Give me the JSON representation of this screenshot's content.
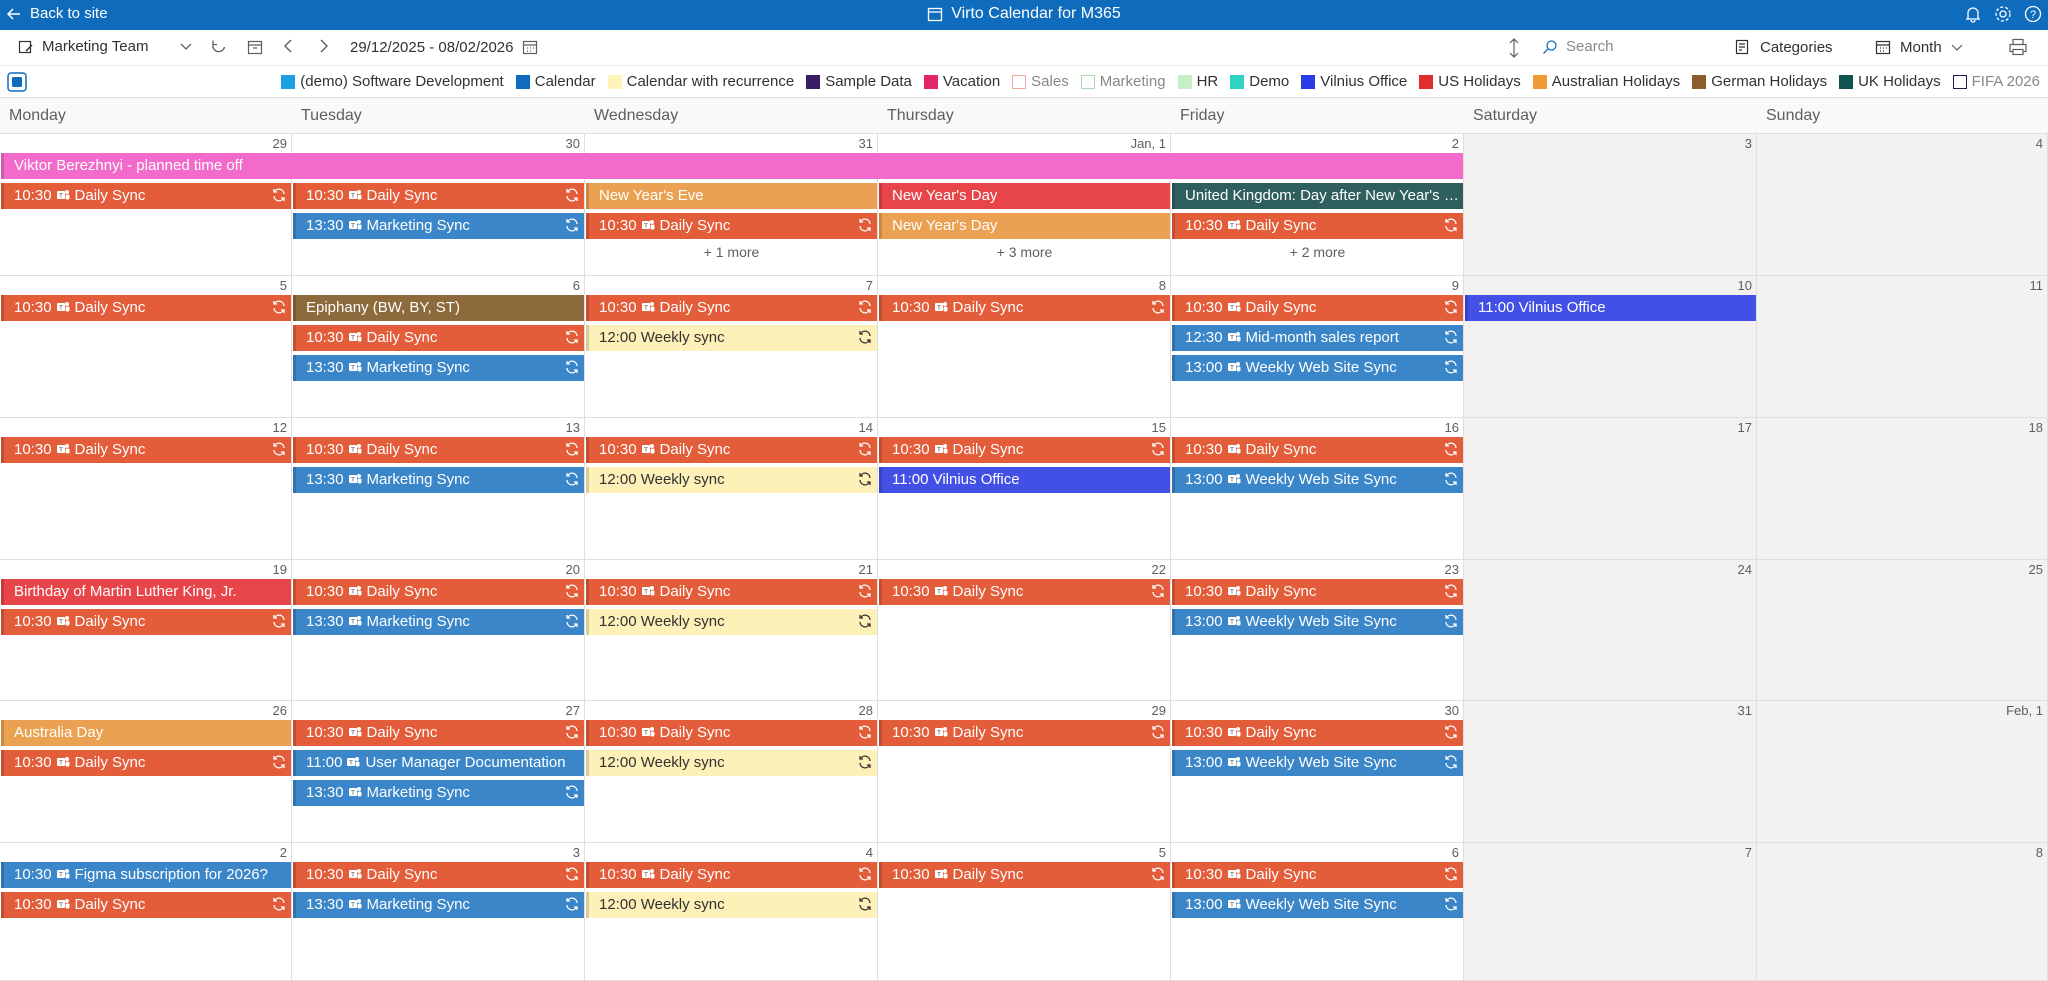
{
  "topbar": {
    "back_label": "Back to site",
    "title": "Virto Calendar for M365"
  },
  "toolbar": {
    "calendar_name": "Marketing Team",
    "date_range": "29/12/2025 - 08/02/2026",
    "search_placeholder": "Search",
    "categories_label": "Categories",
    "view_label": "Month"
  },
  "legend": [
    {
      "label": "(demo) Software Development",
      "color": "#1ba1e2",
      "filled": true
    },
    {
      "label": "Calendar",
      "color": "#0f6cbd",
      "filled": true
    },
    {
      "label": "Calendar with recurrence",
      "color": "#fff4b8",
      "filled": true
    },
    {
      "label": "Sample Data",
      "color": "#3b1d63",
      "filled": true
    },
    {
      "label": "Vacation",
      "color": "#e3256b",
      "filled": true
    },
    {
      "label": "Sales",
      "color": "#f4a7a0",
      "filled": false
    },
    {
      "label": "Marketing",
      "color": "#a8d8a8",
      "filled": false
    },
    {
      "label": "HR",
      "color": "#c6efc6",
      "filled": true
    },
    {
      "label": "Demo",
      "color": "#2ed3c1",
      "filled": true
    },
    {
      "label": "Vilnius Office",
      "color": "#2a3ce8",
      "filled": true
    },
    {
      "label": "US Holidays",
      "color": "#e02d2d",
      "filled": true
    },
    {
      "label": "Australian Holidays",
      "color": "#ef9d33",
      "filled": true
    },
    {
      "label": "German Holidays",
      "color": "#8b5e2b",
      "filled": true
    },
    {
      "label": "UK Holidays",
      "color": "#0e5450",
      "filled": true
    },
    {
      "label": "FIFA 2026",
      "color": "#1b1b4b",
      "filled": false
    }
  ],
  "weekdays": [
    "Monday",
    "Tuesday",
    "Wednesday",
    "Thursday",
    "Friday",
    "Saturday",
    "Sunday"
  ],
  "weeks": [
    [
      "29",
      "30",
      "31",
      "Jan, 1",
      "2",
      "3",
      "4"
    ],
    [
      "5",
      "6",
      "7",
      "8",
      "9",
      "10",
      "11"
    ],
    [
      "12",
      "13",
      "14",
      "15",
      "16",
      "17",
      "18"
    ],
    [
      "19",
      "20",
      "21",
      "22",
      "23",
      "24",
      "25"
    ],
    [
      "26",
      "27",
      "28",
      "29",
      "30",
      "31",
      "Feb, 1"
    ],
    [
      "2",
      "3",
      "4",
      "5",
      "6",
      "7",
      "8"
    ]
  ],
  "colors": {
    "daily": "#e35d3a",
    "marketing": "#3a86c8",
    "weekly": "#fdf0b8",
    "vacation": "#f26bcb",
    "au": "#eba152",
    "us": "#e8454a",
    "uk": "#2e5f5c",
    "de": "#8c6a3c",
    "vilnius": "#4350e6",
    "calendar": "#3a86c8"
  },
  "events": [
    {
      "w": 0,
      "d": 0,
      "span": 5,
      "row": 0,
      "time": "",
      "title": "Viktor Berezhnyi - planned time off",
      "c": "vacation",
      "teams": false,
      "rec": false
    },
    {
      "w": 0,
      "d": 0,
      "row": 1,
      "time": "10:30",
      "title": "Daily Sync",
      "c": "daily",
      "teams": true,
      "rec": true
    },
    {
      "w": 0,
      "d": 1,
      "row": 1,
      "time": "10:30",
      "title": "Daily Sync",
      "c": "daily",
      "teams": true,
      "rec": true
    },
    {
      "w": 0,
      "d": 1,
      "row": 2,
      "time": "13:30",
      "title": "Marketing Sync",
      "c": "marketing",
      "teams": true,
      "rec": true
    },
    {
      "w": 0,
      "d": 2,
      "row": 1,
      "time": "",
      "title": "New Year's Eve",
      "c": "au",
      "teams": false,
      "rec": false
    },
    {
      "w": 0,
      "d": 2,
      "row": 2,
      "time": "10:30",
      "title": "Daily Sync",
      "c": "daily",
      "teams": true,
      "rec": true
    },
    {
      "w": 0,
      "d": 3,
      "row": 1,
      "time": "",
      "title": "New Year's Day",
      "c": "us",
      "teams": false,
      "rec": false
    },
    {
      "w": 0,
      "d": 3,
      "row": 2,
      "time": "",
      "title": "New Year's Day",
      "c": "au",
      "teams": false,
      "rec": false
    },
    {
      "w": 0,
      "d": 4,
      "row": 1,
      "time": "",
      "title": "United Kingdom: Day after New Year's Day",
      "c": "uk",
      "teams": false,
      "rec": false
    },
    {
      "w": 0,
      "d": 4,
      "row": 2,
      "time": "10:30",
      "title": "Daily Sync",
      "c": "daily",
      "teams": true,
      "rec": true
    },
    {
      "w": 1,
      "d": 0,
      "row": 0,
      "time": "10:30",
      "title": "Daily Sync",
      "c": "daily",
      "teams": true,
      "rec": true
    },
    {
      "w": 1,
      "d": 1,
      "row": 0,
      "time": "",
      "title": "Epiphany (BW, BY, ST)",
      "c": "de",
      "teams": false,
      "rec": false
    },
    {
      "w": 1,
      "d": 1,
      "row": 1,
      "time": "10:30",
      "title": "Daily Sync",
      "c": "daily",
      "teams": true,
      "rec": true
    },
    {
      "w": 1,
      "d": 1,
      "row": 2,
      "time": "13:30",
      "title": "Marketing Sync",
      "c": "marketing",
      "teams": true,
      "rec": true
    },
    {
      "w": 1,
      "d": 2,
      "row": 0,
      "time": "10:30",
      "title": "Daily Sync",
      "c": "daily",
      "teams": true,
      "rec": true
    },
    {
      "w": 1,
      "d": 2,
      "row": 1,
      "time": "12:00",
      "title": "Weekly sync",
      "c": "weekly",
      "teams": false,
      "rec": true
    },
    {
      "w": 1,
      "d": 3,
      "row": 0,
      "time": "10:30",
      "title": "Daily Sync",
      "c": "daily",
      "teams": true,
      "rec": true
    },
    {
      "w": 1,
      "d": 4,
      "row": 0,
      "time": "10:30",
      "title": "Daily Sync",
      "c": "daily",
      "teams": true,
      "rec": true
    },
    {
      "w": 1,
      "d": 4,
      "row": 1,
      "time": "12:30",
      "title": "Mid-month sales report",
      "c": "marketing",
      "teams": true,
      "rec": true
    },
    {
      "w": 1,
      "d": 4,
      "row": 2,
      "time": "13:00",
      "title": "Weekly Web Site Sync",
      "c": "marketing",
      "teams": true,
      "rec": true
    },
    {
      "w": 1,
      "d": 5,
      "row": 0,
      "time": "11:00",
      "title": "Vilnius Office",
      "c": "vilnius",
      "teams": false,
      "rec": false
    },
    {
      "w": 2,
      "d": 0,
      "row": 0,
      "time": "10:30",
      "title": "Daily Sync",
      "c": "daily",
      "teams": true,
      "rec": true
    },
    {
      "w": 2,
      "d": 1,
      "row": 0,
      "time": "10:30",
      "title": "Daily Sync",
      "c": "daily",
      "teams": true,
      "rec": true
    },
    {
      "w": 2,
      "d": 1,
      "row": 1,
      "time": "13:30",
      "title": "Marketing Sync",
      "c": "marketing",
      "teams": true,
      "rec": true
    },
    {
      "w": 2,
      "d": 2,
      "row": 0,
      "time": "10:30",
      "title": "Daily Sync",
      "c": "daily",
      "teams": true,
      "rec": true
    },
    {
      "w": 2,
      "d": 2,
      "row": 1,
      "time": "12:00",
      "title": "Weekly sync",
      "c": "weekly",
      "teams": false,
      "rec": true
    },
    {
      "w": 2,
      "d": 3,
      "row": 0,
      "time": "10:30",
      "title": "Daily Sync",
      "c": "daily",
      "teams": true,
      "rec": true
    },
    {
      "w": 2,
      "d": 3,
      "row": 1,
      "time": "11:00",
      "title": "Vilnius Office",
      "c": "vilnius",
      "teams": false,
      "rec": false
    },
    {
      "w": 2,
      "d": 4,
      "row": 0,
      "time": "10:30",
      "title": "Daily Sync",
      "c": "daily",
      "teams": true,
      "rec": true
    },
    {
      "w": 2,
      "d": 4,
      "row": 1,
      "time": "13:00",
      "title": "Weekly Web Site Sync",
      "c": "marketing",
      "teams": true,
      "rec": true
    },
    {
      "w": 3,
      "d": 0,
      "row": 0,
      "time": "",
      "title": "Birthday of Martin Luther King, Jr.",
      "c": "us",
      "teams": false,
      "rec": false
    },
    {
      "w": 3,
      "d": 0,
      "row": 1,
      "time": "10:30",
      "title": "Daily Sync",
      "c": "daily",
      "teams": true,
      "rec": true
    },
    {
      "w": 3,
      "d": 1,
      "row": 0,
      "time": "10:30",
      "title": "Daily Sync",
      "c": "daily",
      "teams": true,
      "rec": true
    },
    {
      "w": 3,
      "d": 1,
      "row": 1,
      "time": "13:30",
      "title": "Marketing Sync",
      "c": "marketing",
      "teams": true,
      "rec": true
    },
    {
      "w": 3,
      "d": 2,
      "row": 0,
      "time": "10:30",
      "title": "Daily Sync",
      "c": "daily",
      "teams": true,
      "rec": true
    },
    {
      "w": 3,
      "d": 2,
      "row": 1,
      "time": "12:00",
      "title": "Weekly sync",
      "c": "weekly",
      "teams": false,
      "rec": true
    },
    {
      "w": 3,
      "d": 3,
      "row": 0,
      "time": "10:30",
      "title": "Daily Sync",
      "c": "daily",
      "teams": true,
      "rec": true
    },
    {
      "w": 3,
      "d": 4,
      "row": 0,
      "time": "10:30",
      "title": "Daily Sync",
      "c": "daily",
      "teams": true,
      "rec": true
    },
    {
      "w": 3,
      "d": 4,
      "row": 1,
      "time": "13:00",
      "title": "Weekly Web Site Sync",
      "c": "marketing",
      "teams": true,
      "rec": true
    },
    {
      "w": 4,
      "d": 0,
      "row": 0,
      "time": "",
      "title": "Australia Day",
      "c": "au",
      "teams": false,
      "rec": false
    },
    {
      "w": 4,
      "d": 0,
      "row": 1,
      "time": "10:30",
      "title": "Daily Sync",
      "c": "daily",
      "teams": true,
      "rec": true
    },
    {
      "w": 4,
      "d": 1,
      "row": 0,
      "time": "10:30",
      "title": "Daily Sync",
      "c": "daily",
      "teams": true,
      "rec": true
    },
    {
      "w": 4,
      "d": 1,
      "row": 1,
      "time": "11:00",
      "title": "User Manager Documentation",
      "c": "marketing",
      "teams": true,
      "rec": false
    },
    {
      "w": 4,
      "d": 1,
      "row": 2,
      "time": "13:30",
      "title": "Marketing Sync",
      "c": "marketing",
      "teams": true,
      "rec": true
    },
    {
      "w": 4,
      "d": 2,
      "row": 0,
      "time": "10:30",
      "title": "Daily Sync",
      "c": "daily",
      "teams": true,
      "rec": true
    },
    {
      "w": 4,
      "d": 2,
      "row": 1,
      "time": "12:00",
      "title": "Weekly sync",
      "c": "weekly",
      "teams": false,
      "rec": true
    },
    {
      "w": 4,
      "d": 3,
      "row": 0,
      "time": "10:30",
      "title": "Daily Sync",
      "c": "daily",
      "teams": true,
      "rec": true
    },
    {
      "w": 4,
      "d": 4,
      "row": 0,
      "time": "10:30",
      "title": "Daily Sync",
      "c": "daily",
      "teams": true,
      "rec": true
    },
    {
      "w": 4,
      "d": 4,
      "row": 1,
      "time": "13:00",
      "title": "Weekly Web Site Sync",
      "c": "marketing",
      "teams": true,
      "rec": true
    },
    {
      "w": 5,
      "d": 0,
      "row": 0,
      "time": "10:30",
      "title": "Figma subscription for 2026?",
      "c": "marketing",
      "teams": true,
      "rec": false
    },
    {
      "w": 5,
      "d": 0,
      "row": 1,
      "time": "10:30",
      "title": "Daily Sync",
      "c": "daily",
      "teams": true,
      "rec": true
    },
    {
      "w": 5,
      "d": 1,
      "row": 0,
      "time": "10:30",
      "title": "Daily Sync",
      "c": "daily",
      "teams": true,
      "rec": true
    },
    {
      "w": 5,
      "d": 1,
      "row": 1,
      "time": "13:30",
      "title": "Marketing Sync",
      "c": "marketing",
      "teams": true,
      "rec": true
    },
    {
      "w": 5,
      "d": 2,
      "row": 0,
      "time": "10:30",
      "title": "Daily Sync",
      "c": "daily",
      "teams": true,
      "rec": true
    },
    {
      "w": 5,
      "d": 2,
      "row": 1,
      "time": "12:00",
      "title": "Weekly sync",
      "c": "weekly",
      "teams": false,
      "rec": true
    },
    {
      "w": 5,
      "d": 3,
      "row": 0,
      "time": "10:30",
      "title": "Daily Sync",
      "c": "daily",
      "teams": true,
      "rec": true
    },
    {
      "w": 5,
      "d": 4,
      "row": 0,
      "time": "10:30",
      "title": "Daily Sync",
      "c": "daily",
      "teams": true,
      "rec": true
    },
    {
      "w": 5,
      "d": 4,
      "row": 1,
      "time": "13:00",
      "title": "Weekly Web Site Sync",
      "c": "marketing",
      "teams": true,
      "rec": true
    }
  ],
  "more_links": [
    {
      "w": 0,
      "d": 2,
      "label": "+ 1 more"
    },
    {
      "w": 0,
      "d": 3,
      "label": "+ 3 more"
    },
    {
      "w": 0,
      "d": 4,
      "label": "+ 2 more"
    }
  ]
}
